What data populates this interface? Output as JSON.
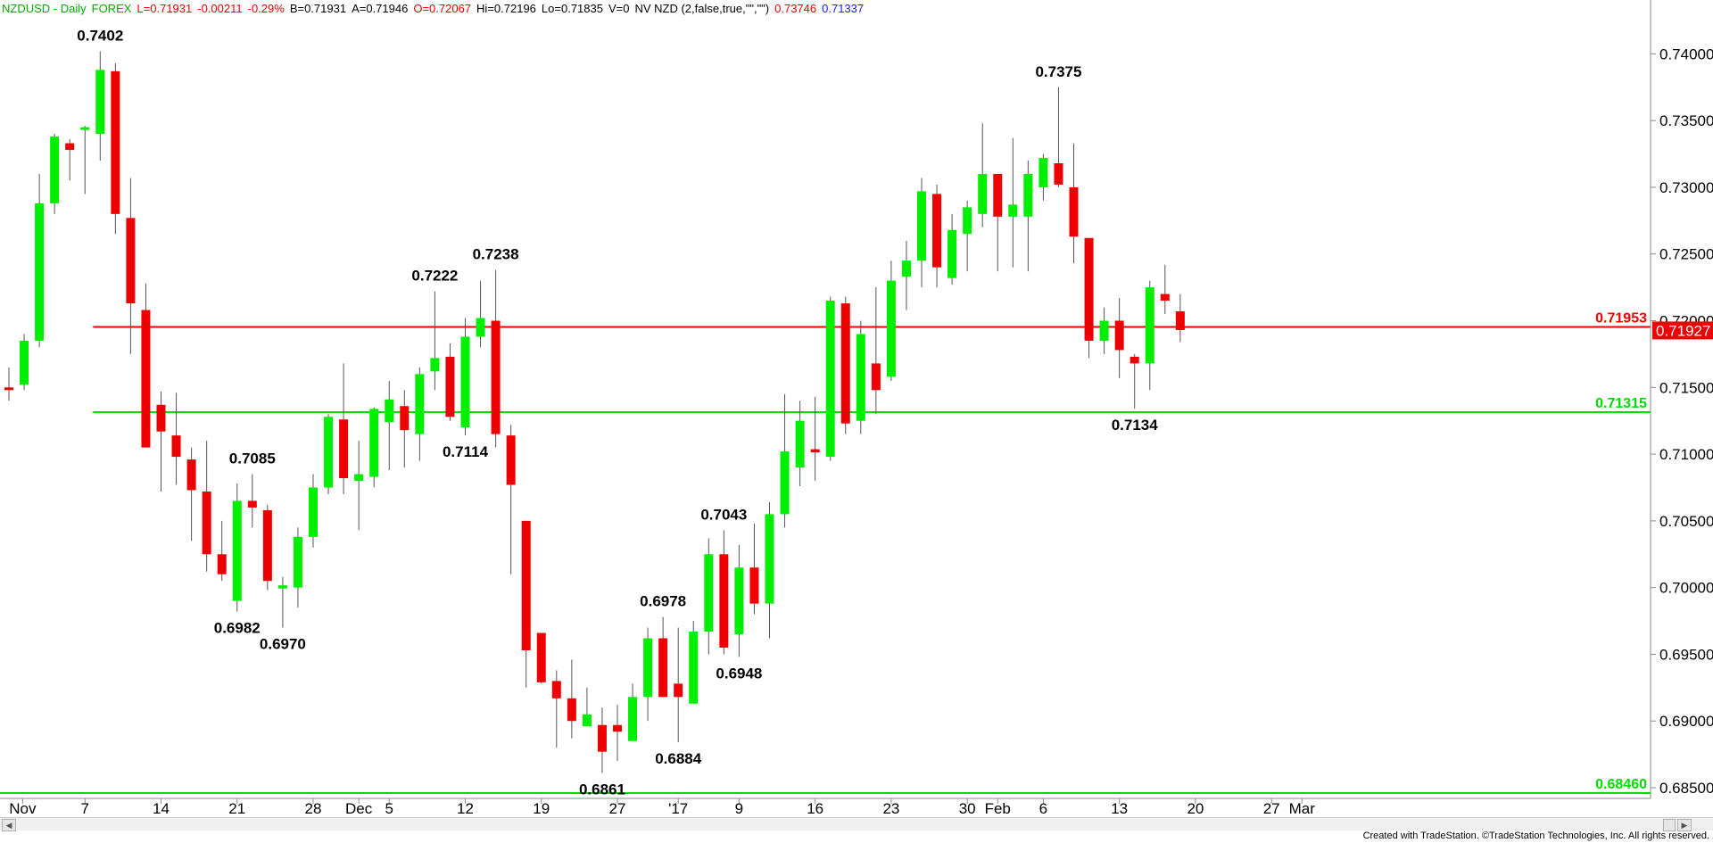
{
  "header": {
    "symbol": "NZDUSD - Daily",
    "market": "FOREX",
    "last": "L=0.71931",
    "change": "-0.00211",
    "change_pct": "-0.29%",
    "bid": "B=0.71931",
    "ask": "A=0.71946",
    "open": "O=0.72067",
    "high": "Hi=0.72196",
    "low": "Lo=0.71835",
    "volume": "V=0",
    "indicator": "NV NZD (2,false,true,\"\",\"\")",
    "ind_val1": "0.73746",
    "ind_val2": "0.71337"
  },
  "footer": "Created with TradeStation. ©TradeStation Technologies, Inc. All rights reserved.",
  "colors": {
    "up": "#00ee00",
    "down": "#ee0000",
    "resistance": "#ee0000",
    "support": "#00dd00",
    "header_green": "#00aa00",
    "header_red": "#ee0000",
    "header_blue": "#1a1aff"
  },
  "chart_data": {
    "type": "candlestick",
    "ylim": [
      0.6842,
      0.7431
    ],
    "yticks": [
      "0.74000",
      "0.73500",
      "0.73000",
      "0.72500",
      "0.72000",
      "0.71500",
      "0.71000",
      "0.70500",
      "0.70000",
      "0.69500",
      "0.69000",
      "0.68500"
    ],
    "ytick_values": [
      0.74,
      0.735,
      0.73,
      0.725,
      0.72,
      0.715,
      0.71,
      0.705,
      0.7,
      0.695,
      0.69,
      0.685
    ],
    "xticks": [
      {
        "label": "Nov",
        "bar": 0.9
      },
      {
        "label": "7",
        "bar": 5
      },
      {
        "label": "14",
        "bar": 10
      },
      {
        "label": "21",
        "bar": 15
      },
      {
        "label": "28",
        "bar": 20
      },
      {
        "label": "Dec",
        "bar": 23
      },
      {
        "label": "5",
        "bar": 25
      },
      {
        "label": "12",
        "bar": 30
      },
      {
        "label": "19",
        "bar": 35
      },
      {
        "label": "27",
        "bar": 40
      },
      {
        "label": "'17",
        "bar": 44
      },
      {
        "label": "9",
        "bar": 48
      },
      {
        "label": "16",
        "bar": 53
      },
      {
        "label": "23",
        "bar": 58
      },
      {
        "label": "30",
        "bar": 63
      },
      {
        "label": "Feb",
        "bar": 65
      },
      {
        "label": "6",
        "bar": 68
      },
      {
        "label": "13",
        "bar": 73
      },
      {
        "label": "20",
        "bar": 78
      },
      {
        "label": "27",
        "bar": 83
      },
      {
        "label": "Mar",
        "bar": 85
      }
    ],
    "candles": [
      [
        0.715,
        0.7165,
        0.714,
        0.7148
      ],
      [
        0.7152,
        0.719,
        0.7148,
        0.7185
      ],
      [
        0.7185,
        0.731,
        0.718,
        0.7288
      ],
      [
        0.7288,
        0.734,
        0.728,
        0.7338
      ],
      [
        0.7333,
        0.7336,
        0.7305,
        0.7328
      ],
      [
        0.7343,
        0.7346,
        0.7295,
        0.7345
      ],
      [
        0.734,
        0.7402,
        0.732,
        0.7388
      ],
      [
        0.7387,
        0.7393,
        0.7265,
        0.728
      ],
      [
        0.7277,
        0.7307,
        0.7175,
        0.7213
      ],
      [
        0.7208,
        0.7228,
        0.7105,
        0.7105
      ],
      [
        0.7137,
        0.7147,
        0.7072,
        0.7117
      ],
      [
        0.7114,
        0.7146,
        0.7077,
        0.7098
      ],
      [
        0.7096,
        0.7105,
        0.7035,
        0.7073
      ],
      [
        0.7072,
        0.711,
        0.7012,
        0.7025
      ],
      [
        0.7025,
        0.705,
        0.7005,
        0.701
      ],
      [
        0.699,
        0.7078,
        0.6982,
        0.7065
      ],
      [
        0.7065,
        0.7085,
        0.7045,
        0.706
      ],
      [
        0.7058,
        0.7062,
        0.6998,
        0.7005
      ],
      [
        0.7,
        0.7008,
        0.697,
        0.7001
      ],
      [
        0.7,
        0.7045,
        0.6985,
        0.7038
      ],
      [
        0.7038,
        0.7085,
        0.703,
        0.7075
      ],
      [
        0.7075,
        0.713,
        0.707,
        0.7128
      ],
      [
        0.7126,
        0.7168,
        0.707,
        0.7082
      ],
      [
        0.708,
        0.711,
        0.7043,
        0.7085
      ],
      [
        0.7083,
        0.7135,
        0.7075,
        0.7134
      ],
      [
        0.7124,
        0.7155,
        0.7088,
        0.7141
      ],
      [
        0.7136,
        0.7148,
        0.709,
        0.7118
      ],
      [
        0.7115,
        0.7165,
        0.7095,
        0.716
      ],
      [
        0.7162,
        0.7222,
        0.7148,
        0.7172
      ],
      [
        0.7173,
        0.7183,
        0.7125,
        0.7128
      ],
      [
        0.712,
        0.7202,
        0.7114,
        0.7188
      ],
      [
        0.7188,
        0.723,
        0.718,
        0.7202
      ],
      [
        0.72,
        0.7238,
        0.7105,
        0.7115
      ],
      [
        0.7114,
        0.7122,
        0.701,
        0.7077
      ],
      [
        0.705,
        0.705,
        0.6925,
        0.6953
      ],
      [
        0.6966,
        0.6966,
        0.6928,
        0.6929
      ],
      [
        0.693,
        0.6938,
        0.688,
        0.6917
      ],
      [
        0.6917,
        0.6946,
        0.6887,
        0.69
      ],
      [
        0.6896,
        0.6925,
        0.6897,
        0.6905
      ],
      [
        0.6897,
        0.691,
        0.6861,
        0.6877
      ],
      [
        0.6897,
        0.6912,
        0.687,
        0.6892
      ],
      [
        0.6885,
        0.6928,
        0.6885,
        0.6918
      ],
      [
        0.6918,
        0.697,
        0.69,
        0.6962
      ],
      [
        0.6962,
        0.6978,
        0.692,
        0.6918
      ],
      [
        0.6928,
        0.697,
        0.6884,
        0.6918
      ],
      [
        0.6913,
        0.6975,
        0.6917,
        0.6967
      ],
      [
        0.6967,
        0.7037,
        0.695,
        0.7025
      ],
      [
        0.7025,
        0.7043,
        0.695,
        0.6955
      ],
      [
        0.6965,
        0.7032,
        0.6948,
        0.7015
      ],
      [
        0.7015,
        0.7048,
        0.698,
        0.6988
      ],
      [
        0.6988,
        0.7064,
        0.6962,
        0.7055
      ],
      [
        0.7055,
        0.7145,
        0.7045,
        0.7102
      ],
      [
        0.709,
        0.714,
        0.7076,
        0.7125
      ],
      [
        0.7103,
        0.7143,
        0.708,
        0.7102
      ],
      [
        0.7098,
        0.7218,
        0.7095,
        0.7215
      ],
      [
        0.7213,
        0.7218,
        0.7115,
        0.7123
      ],
      [
        0.7125,
        0.72,
        0.7115,
        0.719
      ],
      [
        0.7168,
        0.7225,
        0.713,
        0.7148
      ],
      [
        0.7158,
        0.7245,
        0.7155,
        0.723
      ],
      [
        0.7233,
        0.726,
        0.7208,
        0.7245
      ],
      [
        0.7245,
        0.7307,
        0.7225,
        0.7297
      ],
      [
        0.7295,
        0.7302,
        0.7225,
        0.724
      ],
      [
        0.7232,
        0.728,
        0.7227,
        0.7268
      ],
      [
        0.7265,
        0.729,
        0.7237,
        0.7285
      ],
      [
        0.728,
        0.7348,
        0.727,
        0.731
      ],
      [
        0.731,
        0.731,
        0.7237,
        0.7278
      ],
      [
        0.7278,
        0.7337,
        0.724,
        0.7287
      ],
      [
        0.7278,
        0.732,
        0.7237,
        0.731
      ],
      [
        0.73,
        0.7325,
        0.729,
        0.7322
      ],
      [
        0.7318,
        0.7375,
        0.73,
        0.7302
      ],
      [
        0.73,
        0.7333,
        0.7243,
        0.7263
      ],
      [
        0.7262,
        0.7262,
        0.7172,
        0.7185
      ],
      [
        0.7185,
        0.721,
        0.7175,
        0.72
      ],
      [
        0.72,
        0.7217,
        0.7157,
        0.7178
      ],
      [
        0.7173,
        0.7175,
        0.7134,
        0.7168
      ],
      [
        0.7168,
        0.723,
        0.7148,
        0.7225
      ],
      [
        0.722,
        0.7242,
        0.7205,
        0.7215
      ],
      [
        0.7207,
        0.722,
        0.7184,
        0.7193
      ]
    ],
    "lines": [
      {
        "value": 0.71953,
        "label": "0.71953",
        "color": "resistance",
        "from_bar": 6
      },
      {
        "value": 0.71315,
        "label": "0.71315",
        "color": "support",
        "from_bar": 6
      },
      {
        "value": 0.6846,
        "label": "0.68460",
        "color": "support",
        "from_bar": 0
      }
    ],
    "last_price": {
      "value": 0.71927,
      "label": "0.71927"
    },
    "annotations": [
      {
        "text": "0.7402",
        "bar": 6,
        "value": 0.7402,
        "pos": "above"
      },
      {
        "text": "0.6982",
        "bar": 15,
        "value": 0.6982,
        "pos": "below"
      },
      {
        "text": "0.7085",
        "bar": 16,
        "value": 0.7085,
        "pos": "above"
      },
      {
        "text": "0.6970",
        "bar": 18,
        "value": 0.697,
        "pos": "below"
      },
      {
        "text": "0.7222",
        "bar": 28,
        "value": 0.7222,
        "pos": "above"
      },
      {
        "text": "0.7114",
        "bar": 30,
        "value": 0.7114,
        "pos": "below"
      },
      {
        "text": "0.7238",
        "bar": 32,
        "value": 0.7238,
        "pos": "above"
      },
      {
        "text": "0.6861",
        "bar": 39,
        "value": 0.6861,
        "pos": "below"
      },
      {
        "text": "0.6978",
        "bar": 43,
        "value": 0.6978,
        "pos": "above"
      },
      {
        "text": "0.6884",
        "bar": 44,
        "value": 0.6884,
        "pos": "below"
      },
      {
        "text": "0.7043",
        "bar": 47,
        "value": 0.7043,
        "pos": "above"
      },
      {
        "text": "0.6948",
        "bar": 48,
        "value": 0.6948,
        "pos": "below"
      },
      {
        "text": "0.7375",
        "bar": 69,
        "value": 0.7375,
        "pos": "above"
      },
      {
        "text": "0.7134",
        "bar": 74,
        "value": 0.7134,
        "pos": "below"
      }
    ]
  }
}
